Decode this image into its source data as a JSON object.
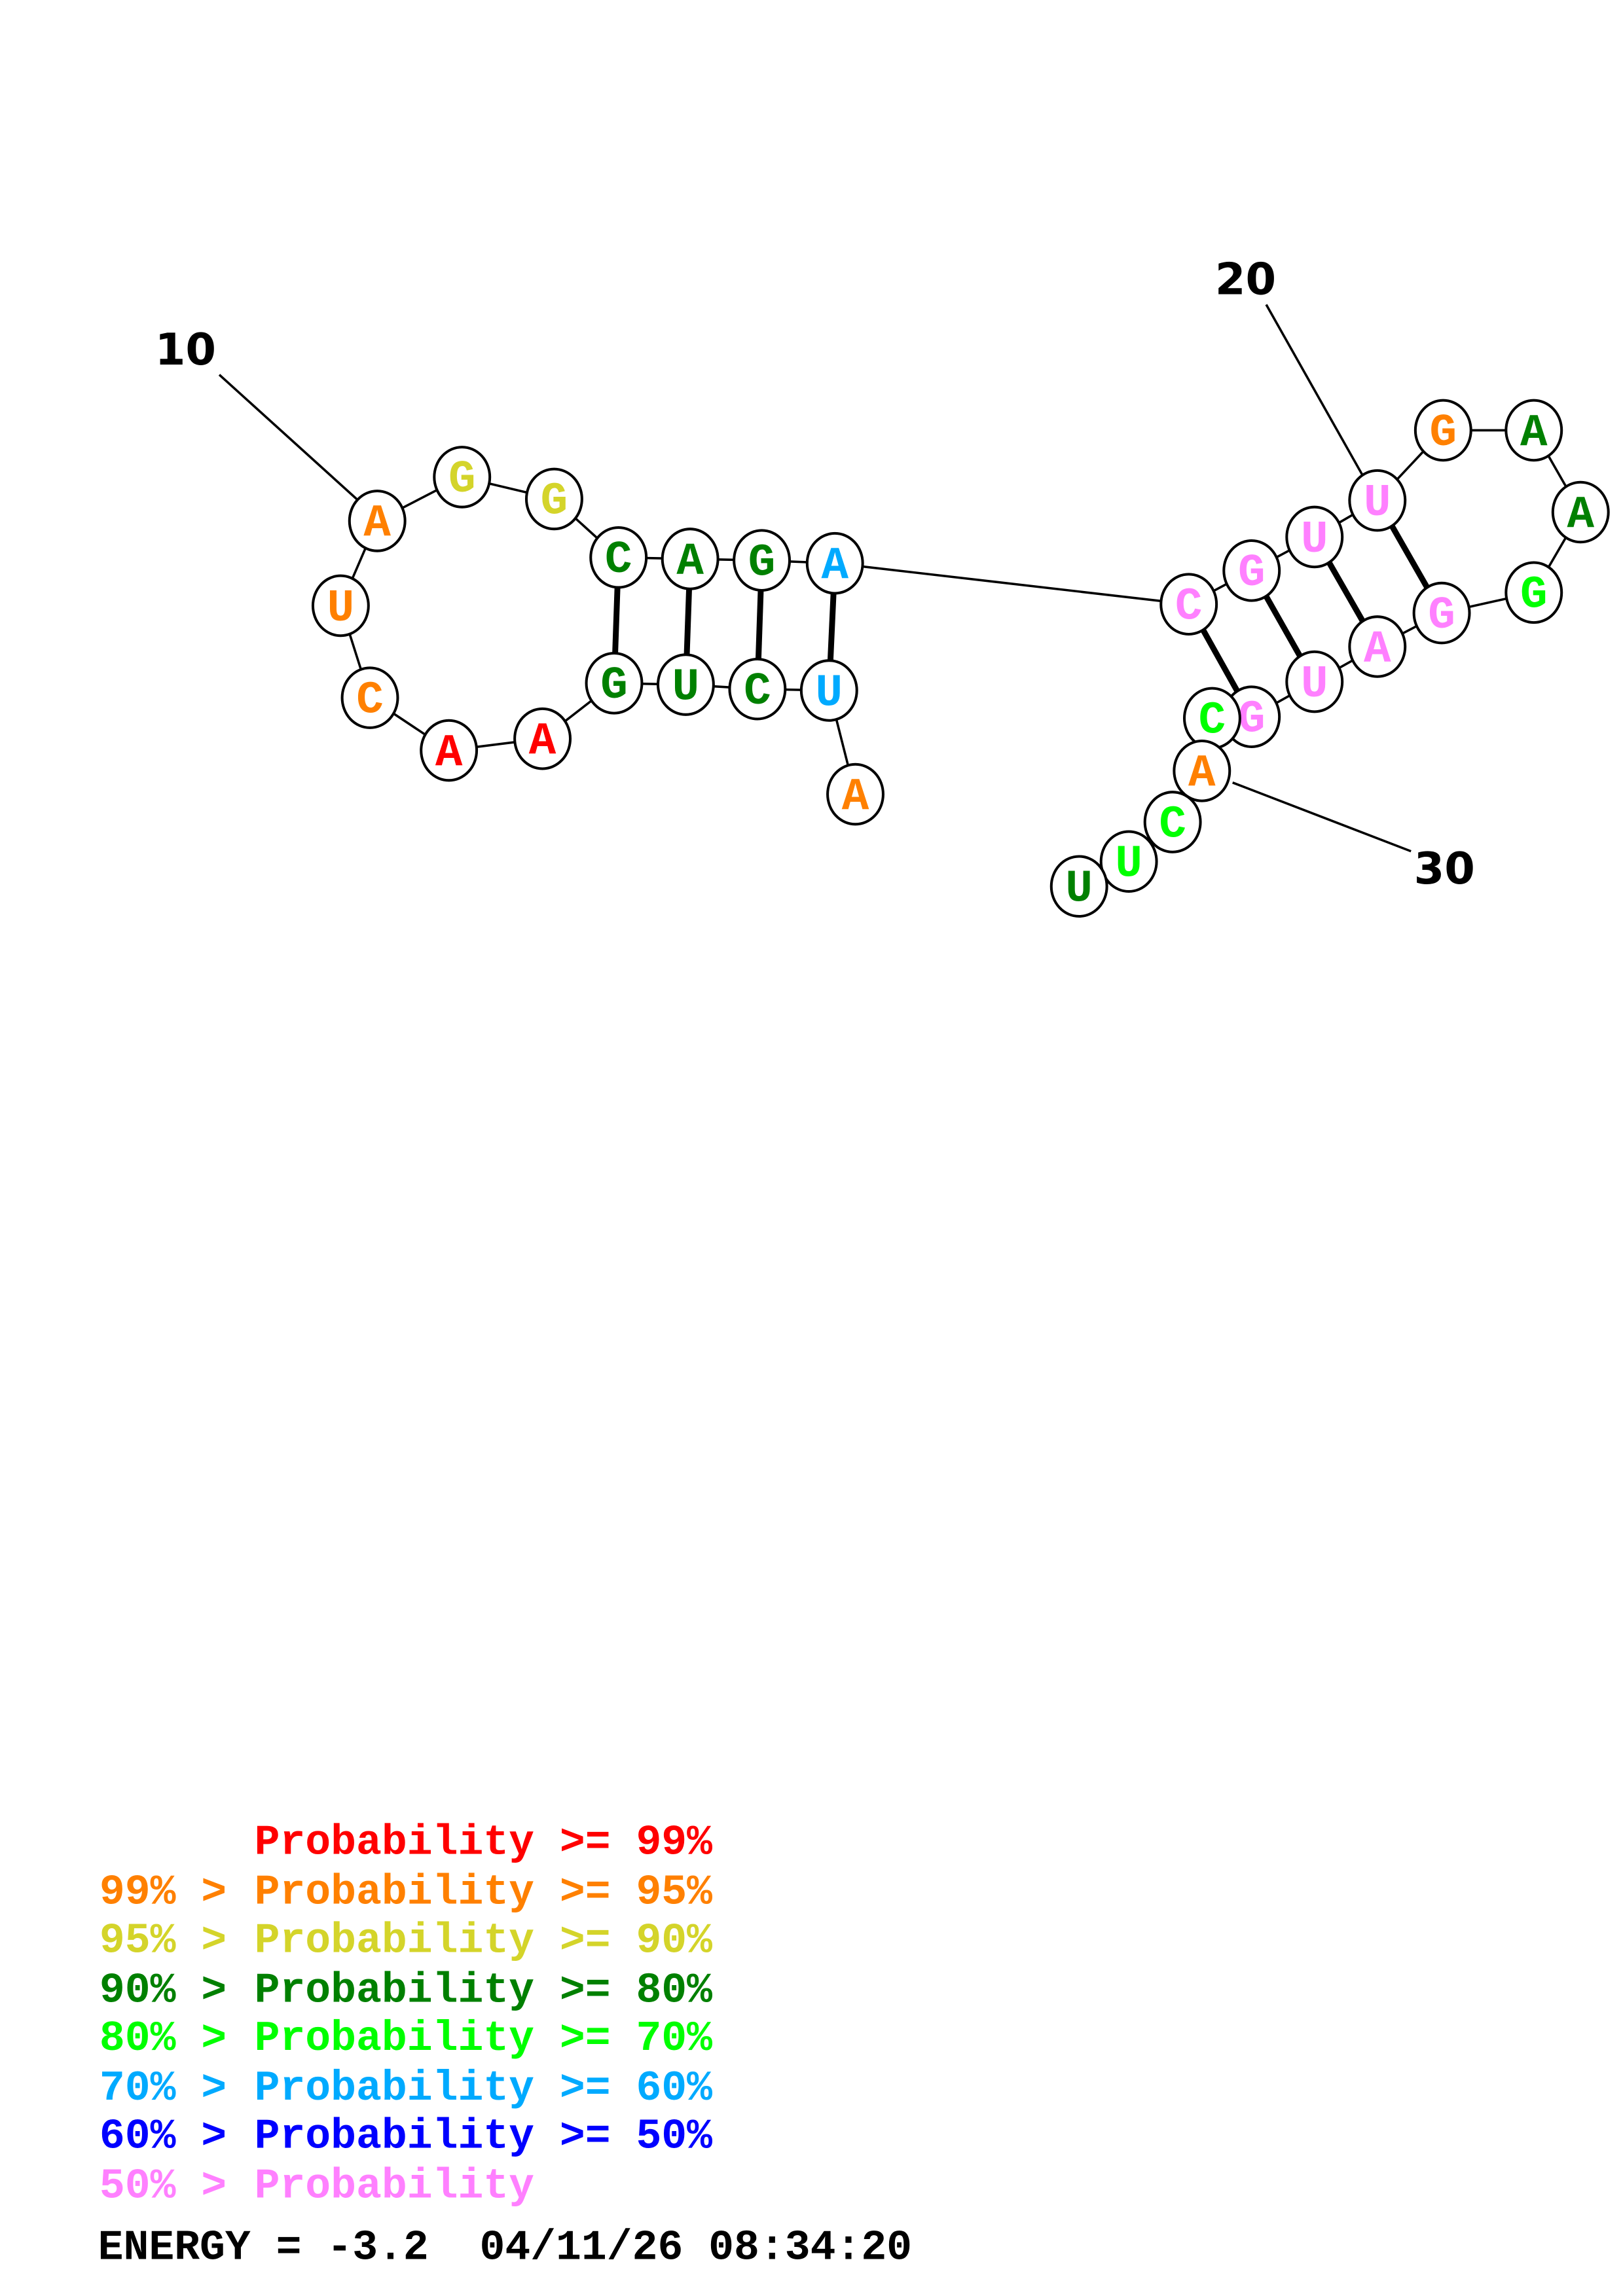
{
  "diagram": {
    "sequence": [
      "A",
      "U",
      "C",
      "U",
      "G",
      "A",
      "A",
      "C",
      "U",
      "A",
      "G",
      "G",
      "C",
      "A",
      "G",
      "A",
      "C",
      "G",
      "U",
      "U",
      "G",
      "A",
      "A",
      "G",
      "G",
      "A",
      "U",
      "G",
      "C",
      "A",
      "C",
      "U",
      "U"
    ],
    "base_probability_class": [
      "p95",
      "p60",
      "p80",
      "p80",
      "p80",
      "p99",
      "p99",
      "p95",
      "p95",
      "p95",
      "p90",
      "p90",
      "p80",
      "p80",
      "p80",
      "p60",
      "plow",
      "plow",
      "plow",
      "plow",
      "p95",
      "p80",
      "p80",
      "p70",
      "plow",
      "plow",
      "plow",
      "plow",
      "p70",
      "p95",
      "p70",
      "p70",
      "p80"
    ],
    "pairs": [
      [
        13,
        5
      ],
      [
        14,
        4
      ],
      [
        15,
        3
      ],
      [
        16,
        2
      ],
      [
        17,
        28
      ],
      [
        18,
        27
      ],
      [
        19,
        26
      ],
      [
        20,
        25
      ]
    ],
    "position_labels": [
      {
        "index": 10,
        "text": "10"
      },
      {
        "index": 20,
        "text": "20"
      },
      {
        "index": 30,
        "text": "30"
      }
    ]
  },
  "colors": {
    "p99": "#ff0000",
    "p95": "#ff8000",
    "p90": "#d4d42a",
    "p80": "#008000",
    "p70": "#00ff00",
    "p60": "#00aaff",
    "p50": "#0000ff",
    "plow": "#ff80ff"
  },
  "legend": [
    {
      "left": "",
      "right": "Probability >= 99%",
      "color": "#ff0000"
    },
    {
      "left": "99% > ",
      "right": "Probability >= 95%",
      "color": "#ff8000"
    },
    {
      "left": "95% > ",
      "right": "Probability >= 90%",
      "color": "#d4d42a"
    },
    {
      "left": "90% > ",
      "right": "Probability >= 80%",
      "color": "#008000"
    },
    {
      "left": "80% > ",
      "right": "Probability >= 70%",
      "color": "#00ff00"
    },
    {
      "left": "70% > ",
      "right": "Probability >= 60%",
      "color": "#00aaff"
    },
    {
      "left": "60% > ",
      "right": "Probability >= 50%",
      "color": "#0000ff"
    },
    {
      "left": "50% > ",
      "right": "Probability",
      "color": "#ff80ff"
    }
  ],
  "footer": {
    "energy": "ENERGY = -3.2  04/11/26 08:34:20"
  }
}
